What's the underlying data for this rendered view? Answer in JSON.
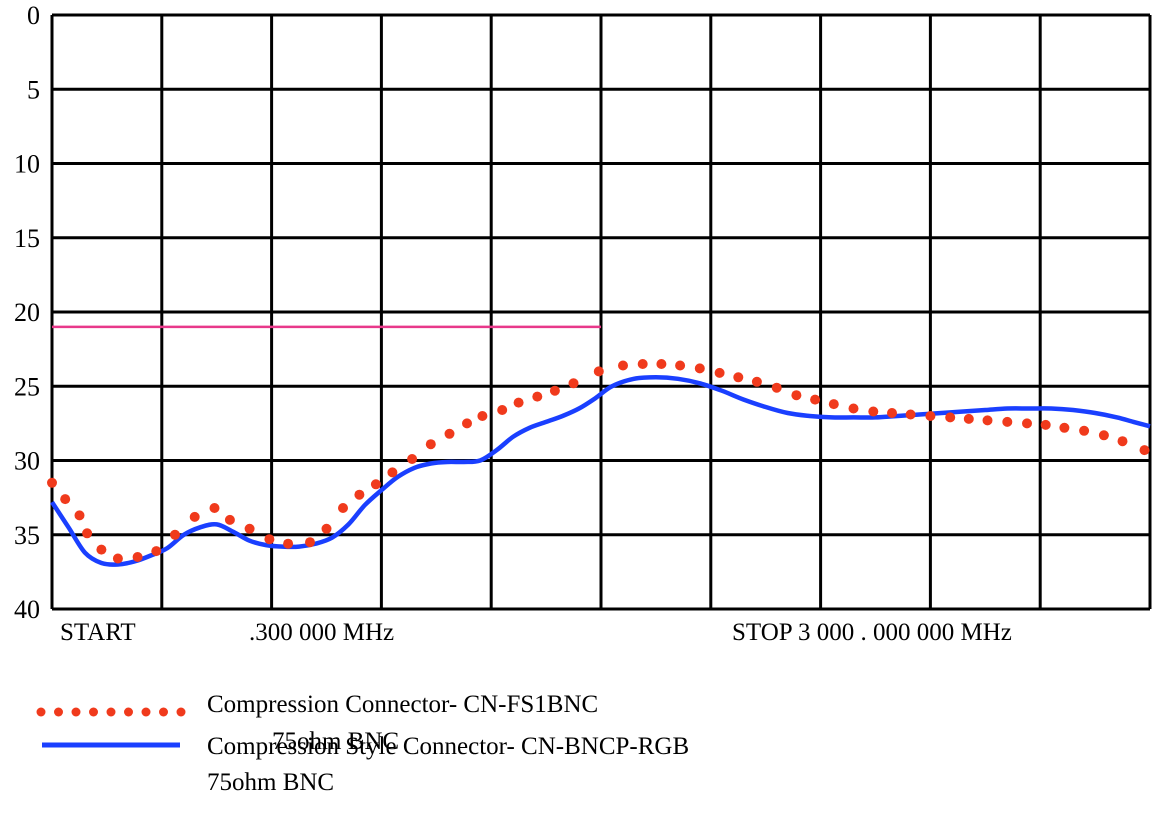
{
  "chart_data": {
    "type": "line",
    "title": "",
    "xlabel": "",
    "ylabel": "",
    "ylim": [
      0,
      40
    ],
    "y_inverted": true,
    "y_ticks": [
      "0",
      "5",
      "10",
      "15",
      "20",
      "25",
      "30",
      "35",
      "40"
    ],
    "x_labels": {
      "start": "START",
      "start_freq": ".300 000  MHz",
      "stop": "STOP  3  000 . 000  000  MHz"
    },
    "grid": true,
    "x_divisions": 10,
    "reference_line": {
      "value": 21,
      "x_from": 0,
      "x_to": 5,
      "color": "#e8388a"
    },
    "x": [
      0,
      0.25,
      0.5,
      0.75,
      1,
      1.25,
      1.5,
      1.75,
      2,
      2.25,
      2.5,
      2.75,
      3,
      3.25,
      3.5,
      3.75,
      4,
      4.25,
      4.5,
      4.75,
      5,
      5.25,
      5.5,
      5.75,
      6,
      6.25,
      6.5,
      6.75,
      7,
      7.25,
      7.5,
      7.75,
      8,
      8.25,
      8.5,
      8.75,
      9,
      9.25,
      9.5,
      9.75,
      10
    ],
    "series": [
      {
        "name": "Compression Connector- CN-FS1BNC",
        "name_line2": "75ohm BNC",
        "style": "dotted",
        "color": "#f03a1c",
        "x": [
          0,
          0.12,
          0.25,
          0.32,
          0.45,
          0.6,
          0.78,
          0.95,
          1.12,
          1.3,
          1.48,
          1.62,
          1.8,
          1.98,
          2.15,
          2.35,
          2.5,
          2.65,
          2.8,
          2.95,
          3.1,
          3.28,
          3.45,
          3.62,
          3.78,
          3.92,
          4.1,
          4.25,
          4.42,
          4.58,
          4.75,
          4.98,
          5.2,
          5.38,
          5.55,
          5.72,
          5.9,
          6.08,
          6.25,
          6.42,
          6.6,
          6.78,
          6.95,
          7.12,
          7.3,
          7.48,
          7.65,
          7.82,
          8.0,
          8.18,
          8.35,
          8.52,
          8.7,
          8.88,
          9.05,
          9.22,
          9.4,
          9.58,
          9.75,
          9.95
        ],
        "y": [
          31.5,
          32.6,
          33.7,
          34.9,
          36.0,
          36.6,
          36.5,
          36.1,
          35.0,
          33.8,
          33.2,
          34.0,
          34.6,
          35.3,
          35.6,
          35.5,
          34.6,
          33.2,
          32.3,
          31.6,
          30.8,
          29.9,
          28.9,
          28.2,
          27.5,
          27.0,
          26.6,
          26.1,
          25.7,
          25.3,
          24.8,
          24.0,
          23.6,
          23.5,
          23.5,
          23.6,
          23.8,
          24.1,
          24.4,
          24.7,
          25.1,
          25.6,
          25.9,
          26.2,
          26.5,
          26.7,
          26.8,
          26.9,
          27.0,
          27.1,
          27.2,
          27.3,
          27.4,
          27.5,
          27.6,
          27.8,
          28.0,
          28.3,
          28.7,
          29.3
        ]
      },
      {
        "name": "Compression Style Connector- CN-BNCP-RGB",
        "name_line2": "75ohm BNC",
        "style": "solid",
        "color": "#1a3fff",
        "x": [
          0,
          0.15,
          0.3,
          0.45,
          0.6,
          0.75,
          0.9,
          1.05,
          1.2,
          1.35,
          1.5,
          1.65,
          1.8,
          1.95,
          2.1,
          2.25,
          2.4,
          2.55,
          2.7,
          2.85,
          3.0,
          3.15,
          3.3,
          3.45,
          3.6,
          3.75,
          3.9,
          4.05,
          4.2,
          4.35,
          4.5,
          4.65,
          4.8,
          4.95,
          5.1,
          5.3,
          5.5,
          5.7,
          5.9,
          6.1,
          6.3,
          6.5,
          6.7,
          6.9,
          7.1,
          7.3,
          7.5,
          7.7,
          7.9,
          8.1,
          8.3,
          8.5,
          8.7,
          8.9,
          9.1,
          9.3,
          9.5,
          9.7,
          9.85,
          10.0
        ],
        "y": [
          32.8,
          34.5,
          36.2,
          36.9,
          37.0,
          36.8,
          36.4,
          35.9,
          35.0,
          34.5,
          34.3,
          34.8,
          35.4,
          35.7,
          35.8,
          35.8,
          35.6,
          35.2,
          34.3,
          33.0,
          32.0,
          31.1,
          30.5,
          30.2,
          30.1,
          30.1,
          30.0,
          29.3,
          28.4,
          27.8,
          27.4,
          27.0,
          26.5,
          25.8,
          25.0,
          24.5,
          24.4,
          24.5,
          24.8,
          25.3,
          25.9,
          26.4,
          26.8,
          27.0,
          27.1,
          27.1,
          27.1,
          27.0,
          26.9,
          26.8,
          26.7,
          26.6,
          26.5,
          26.5,
          26.5,
          26.6,
          26.8,
          27.1,
          27.4,
          27.7
        ]
      }
    ]
  }
}
